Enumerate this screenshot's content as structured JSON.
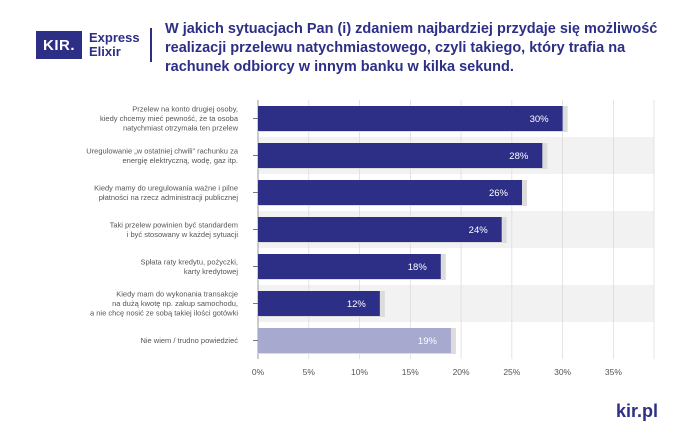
{
  "header": {
    "logo_mark": "KIR.",
    "logo_line1": "Express",
    "logo_line2": "Elixir",
    "title": "W jakich sytuacjach Pan (i) zdaniem najbardziej przydaje się możliwość realizacji przelewu natychmiastowego, czyli takiego, który trafia na rachunek odbiorcy w innym banku w kilka sekund."
  },
  "footer": {
    "brand": "kir.pl"
  },
  "colors": {
    "primary": "#2d2f86",
    "muted": "#a7a9cf",
    "shadow": "#dcdcdc",
    "row_alt": "#f2f2f2"
  },
  "chart_data": {
    "type": "bar",
    "orientation": "horizontal",
    "categories": [
      [
        "Przelew na konto drugiej osoby,",
        "kiedy chcemy mieć pewność, że ta osoba",
        "natychmiast otrzymała ten przelew"
      ],
      [
        "Uregulowanie „w ostatniej chwili” rachunku za",
        "energię elektryczną, wodę, gaz itp."
      ],
      [
        "Kiedy mamy do uregulowania ważne i pilne",
        "płatności na rzecz administracji publicznej"
      ],
      [
        "Taki przelew powinien być standardem",
        "i być stosowany w każdej sytuacji"
      ],
      [
        "Spłata raty kredytu, pożyczki,",
        "karty kredytowej"
      ],
      [
        "Kiedy mam do wykonania transakcje",
        "na dużą kwotę np. zakup samochodu,",
        "a nie chcę nosić ze sobą takiej ilości gotówki"
      ],
      [
        "Nie wiem / trudno powiedzieć"
      ]
    ],
    "values": [
      30,
      28,
      26,
      24,
      18,
      12,
      19
    ],
    "value_labels": [
      "30%",
      "28%",
      "26%",
      "24%",
      "18%",
      "12%",
      "19%"
    ],
    "muted_index": 6,
    "xlim": [
      0,
      39
    ],
    "xticks": [
      0,
      5,
      10,
      15,
      20,
      25,
      30,
      35
    ],
    "xtick_labels": [
      "0%",
      "5%",
      "10%",
      "15%",
      "20%",
      "25%",
      "30%",
      "35%"
    ],
    "grid": true
  }
}
